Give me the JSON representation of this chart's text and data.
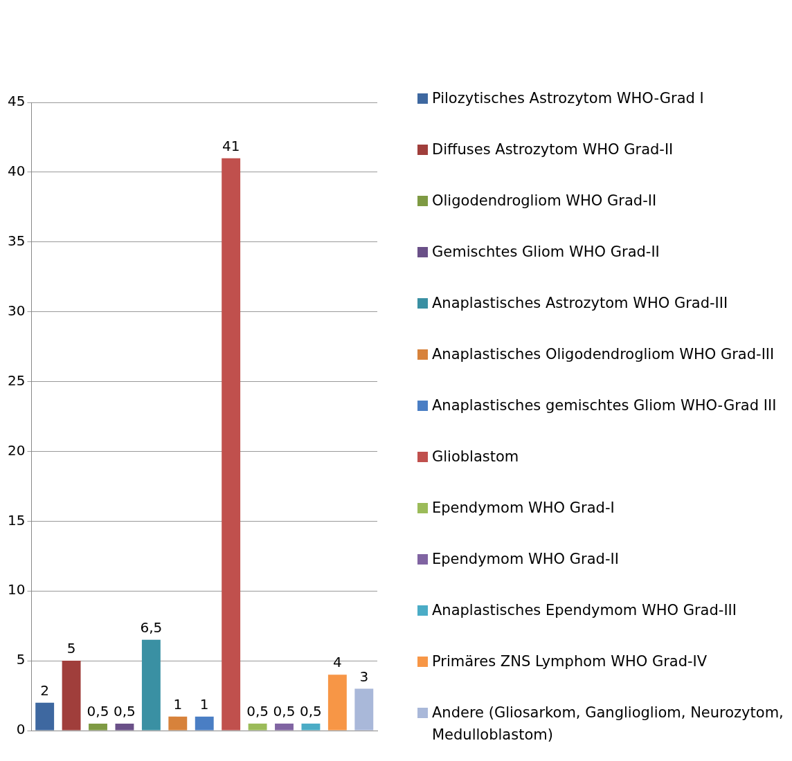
{
  "chart_data": {
    "type": "bar",
    "categories": [
      null
    ],
    "ylim": [
      0,
      45
    ],
    "yticks": [
      0,
      5,
      10,
      15,
      20,
      25,
      30,
      35,
      40,
      45
    ],
    "grid": "y",
    "legend": "right",
    "tick_labels": "y",
    "series": [
      {
        "name": "Pilozytisches Astrozytom WHO-Grad I",
        "color": "#3e68a0",
        "values": [
          2
        ],
        "value_labels": [
          "2"
        ]
      },
      {
        "name": "Diffuses Astrozytom WHO Grad-II",
        "color": "#a03e3b",
        "values": [
          5
        ],
        "value_labels": [
          "5"
        ]
      },
      {
        "name": "Oligodendrogliom WHO Grad-II",
        "color": "#7e9a43",
        "values": [
          0.5
        ],
        "value_labels": [
          "0,5"
        ]
      },
      {
        "name": "Gemischtes Gliom WHO Grad-II",
        "color": "#6a5088",
        "values": [
          0.5
        ],
        "value_labels": [
          "0,5"
        ]
      },
      {
        "name": "Anaplastisches Astrozytom WHO Grad-III",
        "color": "#3a90a3",
        "values": [
          6.5
        ],
        "value_labels": [
          "6,5"
        ]
      },
      {
        "name": "Anaplastisches Oligodendrogliom WHO Grad-III",
        "color": "#d7823b",
        "values": [
          1
        ],
        "value_labels": [
          "1"
        ]
      },
      {
        "name": "Anaplastisches gemischtes Gliom WHO-Grad III",
        "color": "#4a7ec4",
        "values": [
          1
        ],
        "value_labels": [
          "1"
        ]
      },
      {
        "name": "Glioblastom",
        "color": "#c0504d",
        "values": [
          41
        ],
        "value_labels": [
          "41"
        ]
      },
      {
        "name": "Ependymom WHO Grad-I",
        "color": "#9bbb59",
        "values": [
          0.5
        ],
        "value_labels": [
          "0,5"
        ]
      },
      {
        "name": "Ependymom WHO Grad-II",
        "color": "#8064a2",
        "values": [
          0.5
        ],
        "value_labels": [
          "0,5"
        ]
      },
      {
        "name": "Anaplastisches Ependymom WHO Grad-III",
        "color": "#4bacc6",
        "values": [
          0.5
        ],
        "value_labels": [
          "0,5"
        ]
      },
      {
        "name": "Primäres ZNS Lymphom WHO Grad-IV",
        "color": "#f79646",
        "values": [
          4
        ],
        "value_labels": [
          "4"
        ]
      },
      {
        "name": "Andere (Gliosarkom, Gangliogliom, Neurozytom, Medulloblastom)",
        "color": "#a9b8d9",
        "values": [
          3
        ],
        "value_labels": [
          "3"
        ]
      }
    ]
  }
}
